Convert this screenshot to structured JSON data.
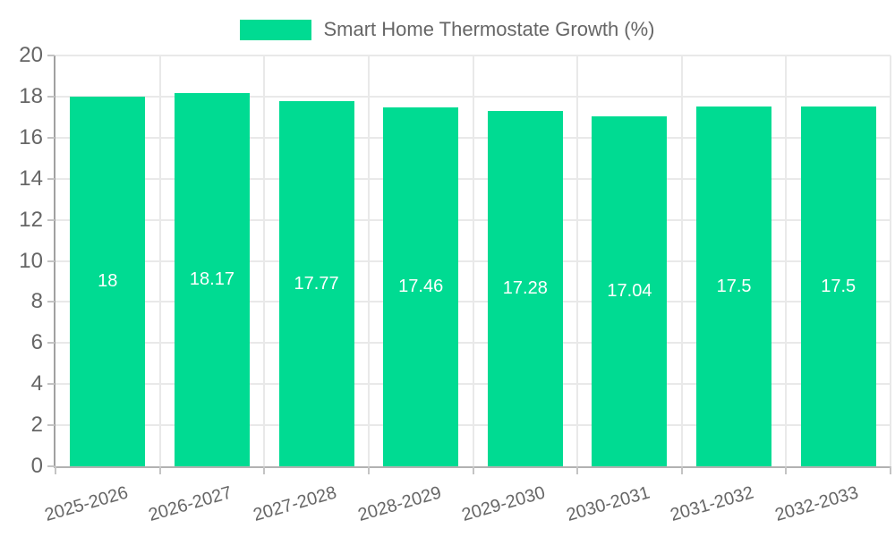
{
  "chart_data": {
    "type": "bar",
    "title": "Smart Home Thermostate Growth (%)",
    "legend_position": "top",
    "categories": [
      "2025-2026",
      "2026-2027",
      "2027-2028",
      "2028-2029",
      "2029-2030",
      "2030-2031",
      "2031-2032",
      "2032-2033"
    ],
    "values": [
      18,
      18.17,
      17.77,
      17.46,
      17.28,
      17.04,
      17.5,
      17.5
    ],
    "value_labels": [
      "18",
      "18.17",
      "17.77",
      "17.46",
      "17.28",
      "17.04",
      "17.5",
      "17.5"
    ],
    "xlabel": "",
    "ylabel": "",
    "ylim": [
      0,
      20
    ],
    "ytick_step": 2,
    "ytick_labels": [
      "0",
      "2",
      "4",
      "6",
      "8",
      "10",
      "12",
      "14",
      "16",
      "18",
      "20"
    ],
    "grid": true,
    "xlabel_rotation_deg": -16,
    "colors": {
      "bar": "#00DB92",
      "value_label": "#ffffff",
      "axis_text": "#666666",
      "legend_text": "#666666",
      "gridline": "#e9e9e9",
      "axis_line": "#a8a8a8",
      "background": "#ffffff"
    }
  }
}
